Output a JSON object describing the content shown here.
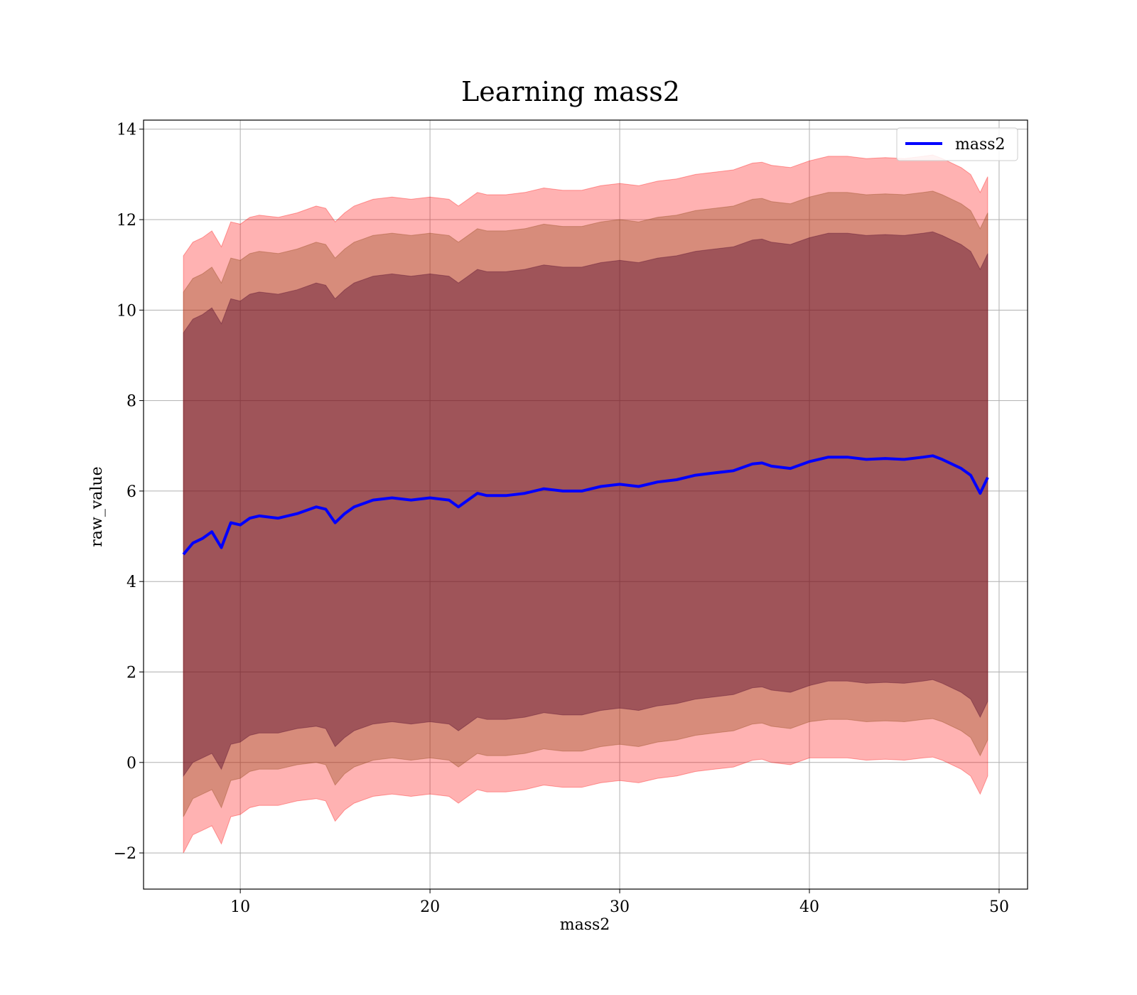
{
  "chart_data": {
    "type": "area",
    "title": "Learning mass2",
    "xlabel": "mass2",
    "ylabel": "raw_value",
    "xlim": [
      4.9,
      51.5
    ],
    "ylim": [
      -2.8,
      14.2
    ],
    "xticks": [
      10,
      20,
      30,
      40,
      50
    ],
    "yticks": [
      -2,
      0,
      2,
      4,
      6,
      8,
      10,
      12,
      14
    ],
    "ytick_labels": [
      "−2",
      "0",
      "2",
      "4",
      "6",
      "8",
      "10",
      "12",
      "14"
    ],
    "grid": true,
    "legend_position": "top-right",
    "colors": {
      "line": "#0000ff",
      "band_outer": "#ff0000",
      "band_middle": "#8b4513",
      "band_inner": "#4b0028",
      "grid": "#b0b0b0"
    },
    "x": [
      7.0,
      7.5,
      8.0,
      8.5,
      9.0,
      9.5,
      10.0,
      10.5,
      11.0,
      12.0,
      13.0,
      14.0,
      14.5,
      15.0,
      15.5,
      16.0,
      17.0,
      18.0,
      19.0,
      20.0,
      21.0,
      21.5,
      22.0,
      22.5,
      23.0,
      24.0,
      25.0,
      26.0,
      27.0,
      28.0,
      29.0,
      30.0,
      31.0,
      32.0,
      33.0,
      34.0,
      35.0,
      36.0,
      37.0,
      37.5,
      38.0,
      39.0,
      40.0,
      41.0,
      42.0,
      43.0,
      44.0,
      45.0,
      46.0,
      46.5,
      47.0,
      48.0,
      48.5,
      49.0,
      49.4
    ],
    "series": [
      {
        "name": "mass2",
        "values": [
          4.6,
          4.85,
          4.95,
          5.1,
          4.75,
          5.3,
          5.25,
          5.4,
          5.45,
          5.4,
          5.5,
          5.65,
          5.6,
          5.3,
          5.5,
          5.65,
          5.8,
          5.85,
          5.8,
          5.85,
          5.8,
          5.65,
          5.8,
          5.95,
          5.9,
          5.9,
          5.95,
          6.05,
          6.0,
          6.0,
          6.1,
          6.15,
          6.1,
          6.2,
          6.25,
          6.35,
          6.4,
          6.45,
          6.6,
          6.62,
          6.55,
          6.5,
          6.65,
          6.75,
          6.75,
          6.7,
          6.72,
          6.7,
          6.75,
          6.78,
          6.7,
          6.5,
          6.35,
          5.95,
          6.3
        ]
      }
    ],
    "bands": [
      {
        "sigma": 3,
        "lower": [
          -2.0,
          -1.6,
          -1.5,
          -1.4,
          -1.8,
          -1.2,
          -1.15,
          -1.0,
          -0.95,
          -0.95,
          -0.85,
          -0.8,
          -0.85,
          -1.3,
          -1.05,
          -0.9,
          -0.75,
          -0.7,
          -0.75,
          -0.7,
          -0.75,
          -0.9,
          -0.75,
          -0.6,
          -0.65,
          -0.65,
          -0.6,
          -0.5,
          -0.55,
          -0.55,
          -0.45,
          -0.4,
          -0.45,
          -0.35,
          -0.3,
          -0.2,
          -0.15,
          -0.1,
          0.05,
          0.07,
          0.0,
          -0.05,
          0.1,
          0.1,
          0.1,
          0.05,
          0.07,
          0.05,
          0.1,
          0.12,
          0.05,
          -0.15,
          -0.3,
          -0.7,
          -0.3
        ],
        "upper": [
          11.2,
          11.5,
          11.6,
          11.75,
          11.4,
          11.95,
          11.9,
          12.05,
          12.1,
          12.05,
          12.15,
          12.3,
          12.25,
          11.95,
          12.15,
          12.3,
          12.45,
          12.5,
          12.45,
          12.5,
          12.45,
          12.3,
          12.45,
          12.6,
          12.55,
          12.55,
          12.6,
          12.7,
          12.65,
          12.65,
          12.75,
          12.8,
          12.75,
          12.85,
          12.9,
          13.0,
          13.05,
          13.1,
          13.25,
          13.27,
          13.2,
          13.15,
          13.3,
          13.4,
          13.4,
          13.35,
          13.37,
          13.35,
          13.4,
          13.43,
          13.35,
          13.15,
          13.0,
          12.6,
          12.95
        ]
      },
      {
        "sigma": 2,
        "lower": [
          -1.2,
          -0.8,
          -0.7,
          -0.6,
          -1.0,
          -0.4,
          -0.35,
          -0.2,
          -0.15,
          -0.15,
          -0.05,
          0.0,
          -0.05,
          -0.5,
          -0.25,
          -0.1,
          0.05,
          0.1,
          0.05,
          0.1,
          0.05,
          -0.1,
          0.05,
          0.2,
          0.15,
          0.15,
          0.2,
          0.3,
          0.25,
          0.25,
          0.35,
          0.4,
          0.35,
          0.45,
          0.5,
          0.6,
          0.65,
          0.7,
          0.85,
          0.87,
          0.8,
          0.75,
          0.9,
          0.95,
          0.95,
          0.9,
          0.92,
          0.9,
          0.95,
          0.97,
          0.9,
          0.7,
          0.55,
          0.15,
          0.5
        ],
        "upper": [
          10.4,
          10.7,
          10.8,
          10.95,
          10.6,
          11.15,
          11.1,
          11.25,
          11.3,
          11.25,
          11.35,
          11.5,
          11.45,
          11.15,
          11.35,
          11.5,
          11.65,
          11.7,
          11.65,
          11.7,
          11.65,
          11.5,
          11.65,
          11.8,
          11.75,
          11.75,
          11.8,
          11.9,
          11.85,
          11.85,
          11.95,
          12.0,
          11.95,
          12.05,
          12.1,
          12.2,
          12.25,
          12.3,
          12.45,
          12.47,
          12.4,
          12.35,
          12.5,
          12.6,
          12.6,
          12.55,
          12.57,
          12.55,
          12.6,
          12.63,
          12.55,
          12.35,
          12.2,
          11.8,
          12.15
        ]
      },
      {
        "sigma": 1,
        "lower": [
          -0.3,
          0.0,
          0.1,
          0.2,
          -0.15,
          0.4,
          0.45,
          0.6,
          0.65,
          0.65,
          0.75,
          0.8,
          0.75,
          0.35,
          0.55,
          0.7,
          0.85,
          0.9,
          0.85,
          0.9,
          0.85,
          0.7,
          0.85,
          1.0,
          0.95,
          0.95,
          1.0,
          1.1,
          1.05,
          1.05,
          1.15,
          1.2,
          1.15,
          1.25,
          1.3,
          1.4,
          1.45,
          1.5,
          1.65,
          1.67,
          1.6,
          1.55,
          1.7,
          1.8,
          1.8,
          1.75,
          1.77,
          1.75,
          1.8,
          1.83,
          1.75,
          1.55,
          1.4,
          1.0,
          1.35
        ],
        "upper": [
          9.5,
          9.8,
          9.9,
          10.05,
          9.7,
          10.25,
          10.2,
          10.35,
          10.4,
          10.35,
          10.45,
          10.6,
          10.55,
          10.25,
          10.45,
          10.6,
          10.75,
          10.8,
          10.75,
          10.8,
          10.75,
          10.6,
          10.75,
          10.9,
          10.85,
          10.85,
          10.9,
          11.0,
          10.95,
          10.95,
          11.05,
          11.1,
          11.05,
          11.15,
          11.2,
          11.3,
          11.35,
          11.4,
          11.55,
          11.57,
          11.5,
          11.45,
          11.6,
          11.7,
          11.7,
          11.65,
          11.67,
          11.65,
          11.7,
          11.73,
          11.65,
          11.45,
          11.3,
          10.9,
          11.25
        ]
      }
    ]
  }
}
